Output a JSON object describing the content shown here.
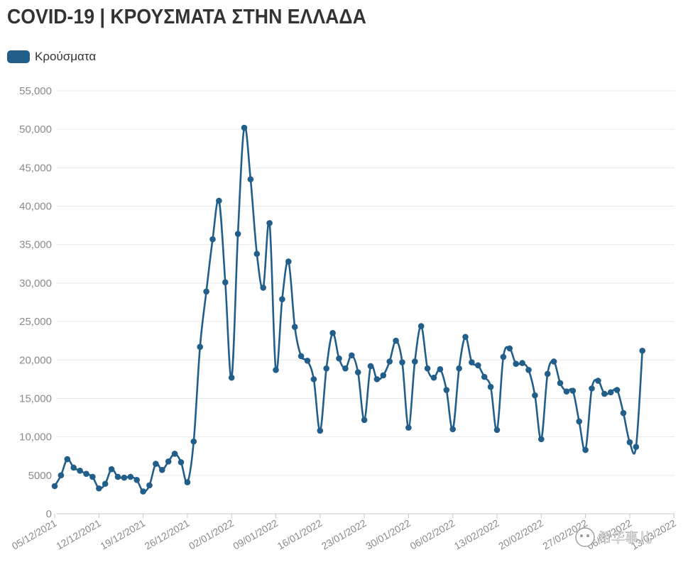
{
  "title": "COVID-19 | ΚΡΟΥΣΜΑΤΑ ΣΤΗΝ ΕΛΛΑΔΑ",
  "legend": {
    "label": "Κρούσματα",
    "color": "#215f8a"
  },
  "watermark": {
    "text": "希华事儿"
  },
  "chart_data": {
    "type": "line",
    "title": "COVID-19 | ΚΡΟΥΣΜΑΤΑ ΣΤΗΝ ΕΛΛΑΔΑ",
    "xlabel": "",
    "ylabel": "",
    "ylim": [
      0,
      55000
    ],
    "yticks": [
      0,
      5000,
      10000,
      15000,
      20000,
      25000,
      30000,
      35000,
      40000,
      45000,
      50000,
      55000
    ],
    "ytick_labels": [
      "0",
      "5000",
      "10,000",
      "15,000",
      "20,000",
      "25,000",
      "30,000",
      "35,000",
      "40,000",
      "45,000",
      "50,000",
      "55,000"
    ],
    "xticks": [
      "05/12/2021",
      "12/12/2021",
      "19/12/2021",
      "26/12/2021",
      "02/01/2022",
      "09/01/2022",
      "16/01/2022",
      "23/01/2022",
      "30/01/2022",
      "06/02/2022",
      "13/02/2022",
      "20/02/2022",
      "27/02/2022",
      "06/03/2022",
      "13/03/2022"
    ],
    "x_start": "05/12/2021",
    "x_step_days": 1,
    "grid": true,
    "legend_position": "top-left",
    "series": [
      {
        "name": "Κρούσματα",
        "color": "#215f8a",
        "values": [
          3600,
          5000,
          7100,
          6000,
          5600,
          5200,
          4800,
          3300,
          3900,
          5800,
          4800,
          4700,
          4800,
          4400,
          2900,
          3700,
          6500,
          5700,
          6800,
          7800,
          6700,
          4100,
          9400,
          21700,
          28900,
          35700,
          40700,
          30100,
          17700,
          36400,
          50200,
          43500,
          33800,
          29400,
          37800,
          18700,
          27900,
          32800,
          24300,
          20500,
          19900,
          17500,
          10800,
          18900,
          23500,
          20200,
          18900,
          20600,
          18400,
          12200,
          19200,
          17500,
          18000,
          19800,
          22500,
          19700,
          11200,
          19800,
          24400,
          18900,
          17700,
          18800,
          16100,
          11000,
          18900,
          23000,
          19700,
          19300,
          17800,
          16500,
          10900,
          20400,
          21500,
          19500,
          19600,
          18700,
          15400,
          9700,
          18200,
          19800,
          17000,
          15900,
          16000,
          12000,
          8300,
          16300,
          17300,
          15600,
          15800,
          16100,
          13100,
          9300,
          8700,
          21200
        ]
      }
    ]
  }
}
